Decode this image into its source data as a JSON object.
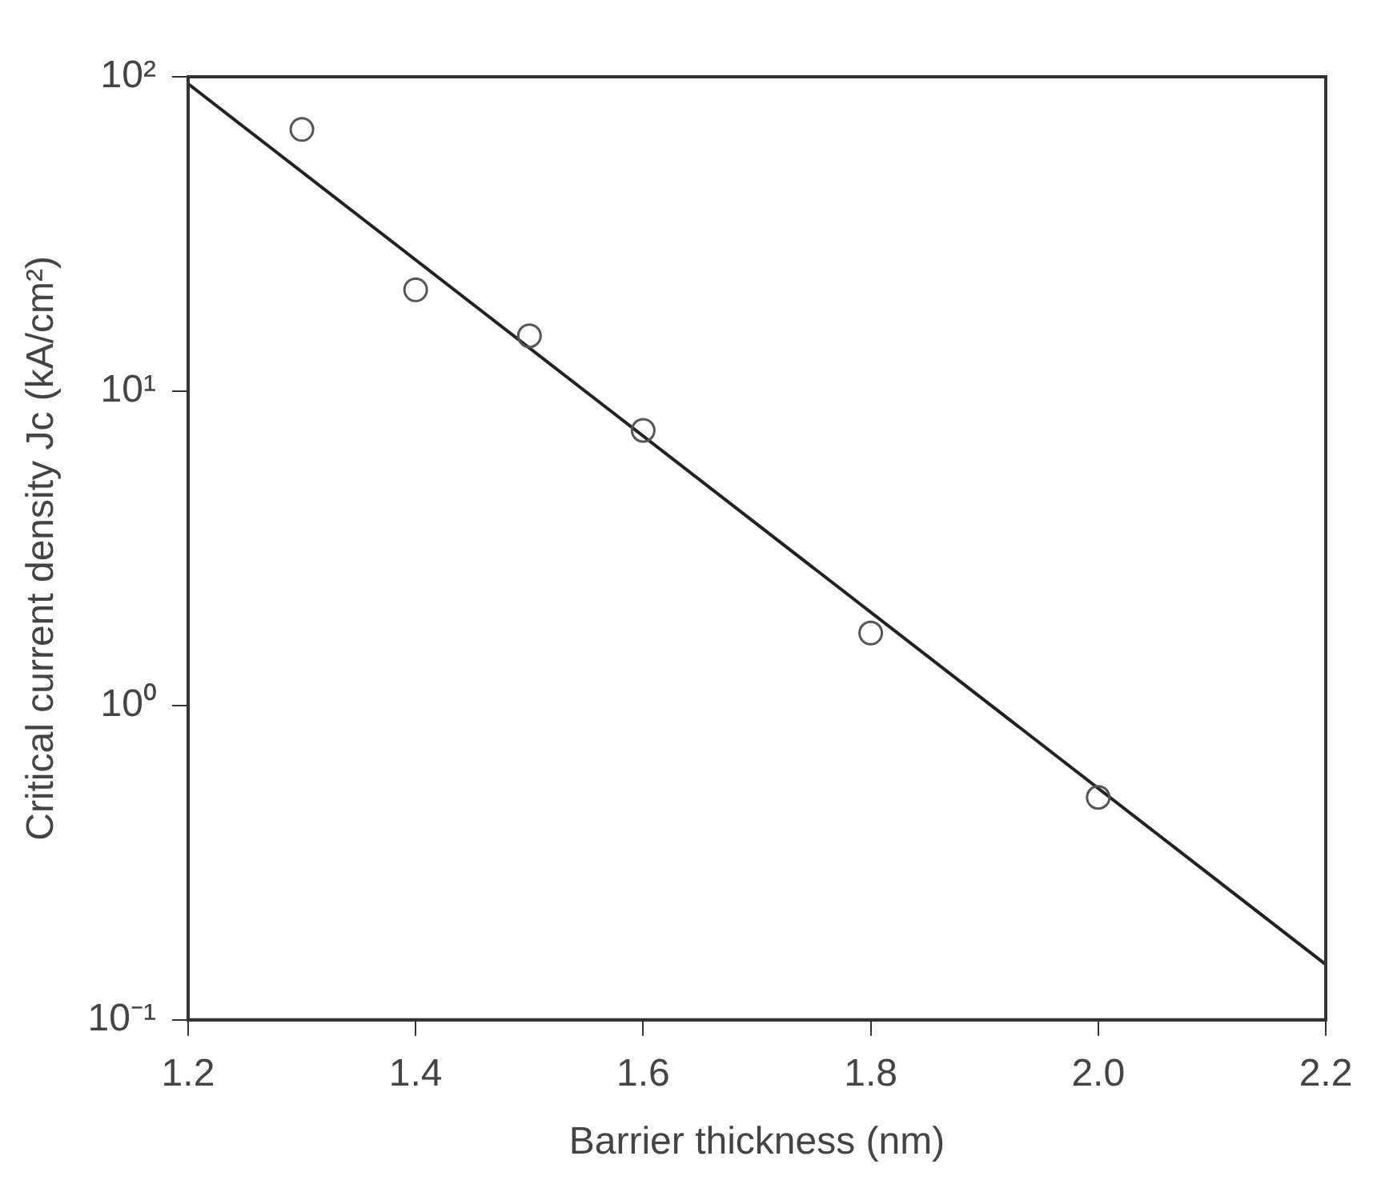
{
  "chart_data": {
    "type": "scatter",
    "xlabel": "Barrier thickness (nm)",
    "ylabel": "Critical current density Jc (kA/cm²)",
    "log": "y",
    "grid": false,
    "legend": false,
    "marker": "circle",
    "xlim": [
      1.2,
      2.2
    ],
    "xticks": [
      {
        "value": 1.2,
        "label": "1.2"
      },
      {
        "value": 1.4,
        "label": "1.4"
      },
      {
        "value": 1.6,
        "label": "1.6"
      },
      {
        "value": 1.8,
        "label": "1.8"
      },
      {
        "value": 2.0,
        "label": "2.0"
      },
      {
        "value": 2.2,
        "label": "2.2"
      }
    ],
    "ylim": [
      0.1,
      100
    ],
    "yticks": [
      {
        "value": 0.1,
        "label": "10⁻¹"
      },
      {
        "value": 1,
        "label": "10⁰"
      },
      {
        "value": 10,
        "label": "10¹"
      },
      {
        "value": 100,
        "label": "10²"
      }
    ],
    "x": [
      1.3,
      1.4,
      1.5,
      1.6,
      1.8,
      2.0
    ],
    "series": [
      {
        "color": "#555555",
        "values": [
          68,
          21,
          15,
          7.5,
          1.7,
          0.51
        ]
      },
      {
        "type": "line",
        "color": "#222222",
        "x": [
          1.2,
          2.2
        ],
        "values": [
          95,
          0.15
        ],
        "marker": "none",
        "line_style": "solid"
      }
    ]
  }
}
